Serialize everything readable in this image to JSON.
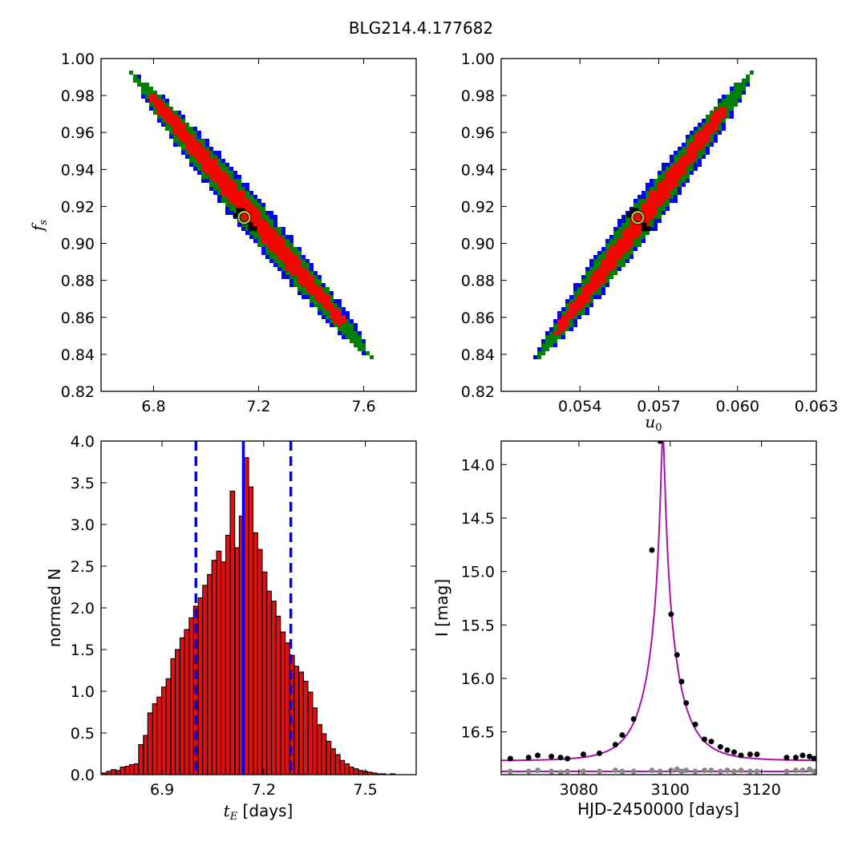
{
  "figure": {
    "title": "BLG214.4.177682"
  },
  "colors": {
    "sigma3": "#0000ff",
    "sigma2": "#008000",
    "sigma1": "#ff0000",
    "best_cells": "#000000",
    "best_marker": "#d4c43a",
    "hist_bar": "#dd1111",
    "hist_lines": "#0000ff",
    "model_curve": "#aa11aa",
    "data_points": "#000000",
    "residual_points": "#888888"
  },
  "chart_data": [
    {
      "id": "fs-vs-tE",
      "type": "heatmap",
      "description_kind": "2D credible-region density (blue, green, red levels)",
      "xlabel": "",
      "ylabel": "f_s",
      "xlim": [
        6.6,
        7.8
      ],
      "ylim": [
        0.82,
        1.0
      ],
      "xticks": [
        "6.8",
        "7.2",
        "7.6"
      ],
      "xtick_values": [
        6.8,
        7.2,
        7.6
      ],
      "yticks": [
        "0.82",
        "0.84",
        "0.86",
        "0.88",
        "0.90",
        "0.92",
        "0.94",
        "0.96",
        "0.98",
        "1.00"
      ],
      "ytick_values": [
        0.82,
        0.84,
        0.86,
        0.88,
        0.9,
        0.92,
        0.94,
        0.96,
        0.98,
        1.0
      ],
      "ridge": [
        [
          6.72,
          0.992
        ],
        [
          6.95,
          0.958
        ],
        [
          7.15,
          0.913
        ],
        [
          7.35,
          0.876
        ],
        [
          7.63,
          0.838
        ]
      ],
      "best_fit": {
        "x": 7.145,
        "y": 0.914
      }
    },
    {
      "id": "fs-vs-u0",
      "type": "heatmap",
      "description_kind": "2D credible-region density (blue, green, red levels)",
      "xlabel": "u_0",
      "ylabel": "",
      "xlim": [
        0.051,
        0.063
      ],
      "ylim": [
        0.82,
        1.0
      ],
      "xticks": [
        "0.054",
        "0.057",
        "0.060",
        "0.063"
      ],
      "xtick_values": [
        0.054,
        0.057,
        0.06,
        0.063
      ],
      "yticks": [
        "0.82",
        "0.84",
        "0.86",
        "0.88",
        "0.90",
        "0.92",
        "0.94",
        "0.96",
        "0.98",
        "1.00"
      ],
      "ytick_values": [
        0.82,
        0.84,
        0.86,
        0.88,
        0.9,
        0.92,
        0.94,
        0.96,
        0.98,
        1.0
      ],
      "ridge": [
        [
          0.0524,
          0.838
        ],
        [
          0.054,
          0.862
        ],
        [
          0.0562,
          0.913
        ],
        [
          0.058,
          0.95
        ],
        [
          0.0605,
          0.992
        ]
      ],
      "best_fit": {
        "x": 0.0562,
        "y": 0.914
      }
    },
    {
      "id": "tE-histogram",
      "type": "bar",
      "xlabel": "t_E [days]",
      "ylabel": "normed N",
      "xlim": [
        6.72,
        7.65
      ],
      "ylim": [
        0.0,
        4.0
      ],
      "xticks": [
        "6.9",
        "7.2",
        "7.5"
      ],
      "xtick_values": [
        6.9,
        7.2,
        7.5
      ],
      "yticks": [
        "0.0",
        "0.5",
        "1.0",
        "1.5",
        "2.0",
        "2.5",
        "3.0",
        "3.5",
        "4.0"
      ],
      "ytick_values": [
        0.0,
        0.5,
        1.0,
        1.5,
        2.0,
        2.5,
        3.0,
        3.5,
        4.0
      ],
      "bin_width": 0.0135,
      "bin_starts": [
        6.723,
        6.737,
        6.75,
        6.764,
        6.777,
        6.791,
        6.804,
        6.818,
        6.831,
        6.845,
        6.858,
        6.872,
        6.885,
        6.899,
        6.912,
        6.926,
        6.939,
        6.953,
        6.966,
        6.98,
        6.993,
        7.007,
        7.02,
        7.034,
        7.047,
        7.061,
        7.074,
        7.088,
        7.101,
        7.115,
        7.128,
        7.142,
        7.155,
        7.169,
        7.182,
        7.196,
        7.209,
        7.223,
        7.236,
        7.25,
        7.263,
        7.277,
        7.29,
        7.304,
        7.317,
        7.331,
        7.344,
        7.358,
        7.371,
        7.385,
        7.398,
        7.412,
        7.425,
        7.439,
        7.452,
        7.466,
        7.479,
        7.493,
        7.506,
        7.52,
        7.533,
        7.547,
        7.56,
        7.574,
        7.587,
        7.601,
        7.614,
        7.628
      ],
      "values": [
        0.02,
        0.04,
        0.06,
        0.05,
        0.09,
        0.1,
        0.12,
        0.13,
        0.36,
        0.47,
        0.74,
        0.85,
        0.93,
        1.05,
        1.15,
        1.39,
        1.5,
        1.64,
        1.74,
        1.88,
        2.02,
        2.12,
        2.27,
        2.4,
        2.57,
        2.68,
        2.55,
        2.87,
        3.4,
        2.72,
        3.1,
        3.8,
        3.45,
        2.9,
        2.7,
        2.43,
        2.2,
        2.08,
        1.9,
        1.71,
        1.58,
        1.43,
        1.3,
        1.23,
        1.12,
        0.99,
        0.8,
        0.6,
        0.49,
        0.4,
        0.31,
        0.24,
        0.17,
        0.13,
        0.09,
        0.07,
        0.05,
        0.04,
        0.03,
        0.02,
        0.01,
        0.01,
        0.0,
        0.01,
        0.0,
        0.0,
        0.0,
        0.0
      ],
      "vlines_dashed": [
        7.0,
        7.28
      ],
      "vline_solid": 7.14
    },
    {
      "id": "light-curve",
      "type": "line",
      "xlabel": "HJD-2450000 [days]",
      "ylabel": "I [mag]",
      "xlim": [
        3063,
        3132
      ],
      "ylim": [
        16.9,
        13.78
      ],
      "y_inverted": true,
      "xticks": [
        "3080",
        "3100",
        "3120"
      ],
      "xtick_values": [
        3080,
        3100,
        3120
      ],
      "yticks": [
        "14.0",
        "14.5",
        "15.0",
        "15.5",
        "16.0",
        "16.5"
      ],
      "ytick_values": [
        14.0,
        14.5,
        15.0,
        15.5,
        16.0,
        16.5
      ],
      "model": {
        "t0": 3098.4,
        "tE": 7.14,
        "u0": 0.0562,
        "fs": 0.914,
        "I_base": 16.77
      },
      "baseline_model_I": 16.87,
      "data_points": [
        [
          3065.0,
          16.75
        ],
        [
          3069.0,
          16.74
        ],
        [
          3071.0,
          16.72
        ],
        [
          3074.0,
          16.73
        ],
        [
          3076.0,
          16.74
        ],
        [
          3077.5,
          16.75
        ],
        [
          3081.0,
          16.71
        ],
        [
          3084.5,
          16.7
        ],
        [
          3088.0,
          16.62
        ],
        [
          3089.5,
          16.53
        ],
        [
          3092.0,
          16.38
        ],
        [
          3096.0,
          14.8
        ],
        [
          3097.8,
          13.78
        ],
        [
          3100.2,
          15.4
        ],
        [
          3101.5,
          15.78
        ],
        [
          3102.5,
          16.03
        ],
        [
          3103.5,
          16.23
        ],
        [
          3105.5,
          16.43
        ],
        [
          3107.5,
          16.57
        ],
        [
          3109.0,
          16.59
        ],
        [
          3111.0,
          16.64
        ],
        [
          3112.5,
          16.67
        ],
        [
          3114.0,
          16.69
        ],
        [
          3115.5,
          16.72
        ],
        [
          3117.5,
          16.71
        ],
        [
          3119.0,
          16.71
        ],
        [
          3125.5,
          16.74
        ],
        [
          3127.5,
          16.74
        ],
        [
          3129.0,
          16.72
        ],
        [
          3130.5,
          16.73
        ],
        [
          3131.5,
          16.75
        ]
      ],
      "residual_points": [
        [
          3065.0,
          16.87
        ],
        [
          3069.0,
          16.87
        ],
        [
          3071.0,
          16.86
        ],
        [
          3074.0,
          16.87
        ],
        [
          3076.0,
          16.88
        ],
        [
          3077.5,
          16.87
        ],
        [
          3081.0,
          16.87
        ],
        [
          3084.5,
          16.87
        ],
        [
          3088.0,
          16.86
        ],
        [
          3089.5,
          16.87
        ],
        [
          3092.0,
          16.87
        ],
        [
          3096.0,
          16.86
        ],
        [
          3097.8,
          16.87
        ],
        [
          3100.2,
          16.86
        ],
        [
          3101.5,
          16.85
        ],
        [
          3102.5,
          16.87
        ],
        [
          3103.5,
          16.86
        ],
        [
          3105.5,
          16.87
        ],
        [
          3107.5,
          16.86
        ],
        [
          3109.0,
          16.86
        ],
        [
          3111.0,
          16.87
        ],
        [
          3112.5,
          16.86
        ],
        [
          3114.0,
          16.87
        ],
        [
          3115.5,
          16.86
        ],
        [
          3117.5,
          16.87
        ],
        [
          3119.0,
          16.87
        ],
        [
          3125.5,
          16.87
        ],
        [
          3127.5,
          16.86
        ],
        [
          3129.0,
          16.86
        ],
        [
          3130.5,
          16.85
        ],
        [
          3131.5,
          16.87
        ]
      ]
    }
  ]
}
